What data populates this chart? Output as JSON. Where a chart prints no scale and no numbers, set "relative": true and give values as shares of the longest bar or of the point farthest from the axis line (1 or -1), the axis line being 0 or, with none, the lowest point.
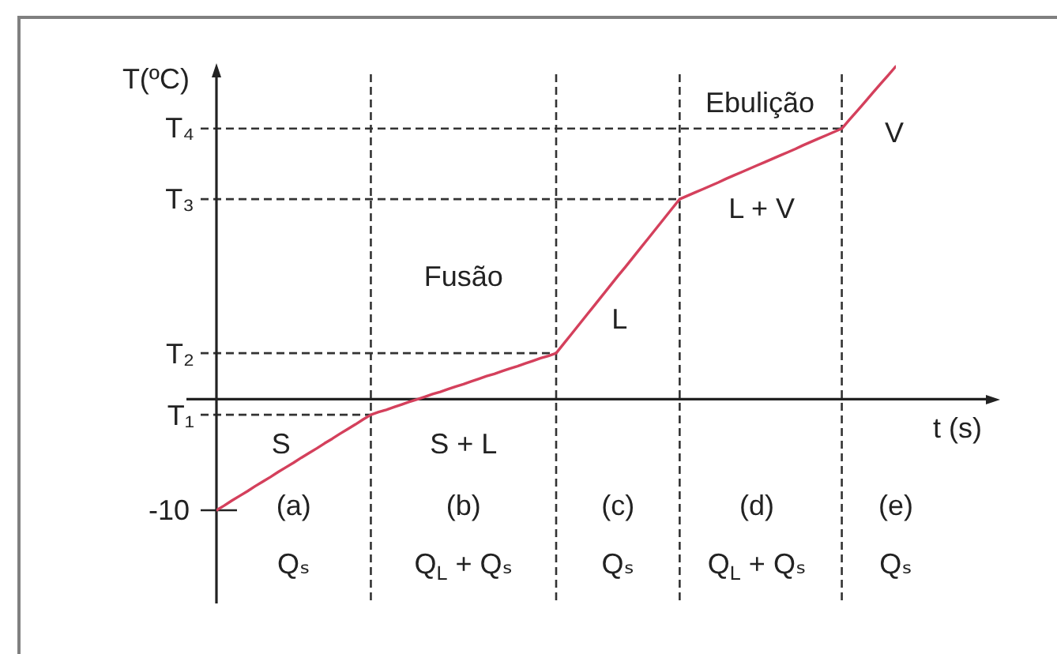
{
  "chart_data": {
    "type": "line",
    "relative": true,
    "tick_labels": "x",
    "xlabel": "t (s)",
    "ylabel": "T(ºC)",
    "categories": [
      null,
      null,
      null,
      null,
      null,
      null,
      null,
      null,
      null,
      null,
      "(a)",
      null,
      null,
      null,
      null,
      null,
      null,
      null,
      null,
      null,
      null,
      null,
      null,
      null,
      null,
      null,
      null,
      null,
      null,
      null,
      null,
      null,
      "(b)",
      null,
      null,
      null,
      null,
      null,
      null,
      null,
      null,
      null,
      null,
      null,
      null,
      null,
      null,
      null,
      null,
      null,
      null,
      null,
      "(c)",
      null,
      null,
      null,
      null,
      null,
      null,
      null,
      null,
      null,
      null,
      null,
      null,
      null,
      null,
      null,
      null,
      null,
      "(d)",
      null,
      null,
      null,
      null,
      null,
      null,
      null,
      null,
      null,
      null,
      null,
      null,
      null,
      null,
      null,
      null,
      null,
      "(e)"
    ],
    "series": [
      {
        "color": "#d4405c",
        "values": [
          -0.334,
          -0.32,
          -0.305,
          -0.291,
          -0.277,
          -0.262,
          -0.248,
          -0.234,
          -0.219,
          -0.205,
          -0.191,
          -0.176,
          -0.162,
          -0.148,
          -0.133,
          -0.119,
          -0.104,
          -0.09,
          -0.076,
          -0.061,
          -0.047,
          -0.039,
          -0.032,
          -0.024,
          -0.016,
          -0.008,
          -0.001,
          0.007,
          0.015,
          0.022,
          0.03,
          0.038,
          0.045,
          0.053,
          0.061,
          0.069,
          0.076,
          0.084,
          0.092,
          0.099,
          0.107,
          0.115,
          0.123,
          0.13,
          0.138,
          0.167,
          0.196,
          0.225,
          0.254,
          0.283,
          0.312,
          0.341,
          0.37,
          0.398,
          0.427,
          0.456,
          0.485,
          0.514,
          0.543,
          0.572,
          0.601,
          0.611,
          0.621,
          0.631,
          0.641,
          0.651,
          0.662,
          0.672,
          0.682,
          0.692,
          0.702,
          0.712,
          0.722,
          0.732,
          0.742,
          0.752,
          0.763,
          0.773,
          0.783,
          0.793,
          0.803,
          0.813,
          0.84,
          0.866,
          0.893,
          0.92,
          0.947,
          0.973,
          1
        ]
      }
    ],
    "ref_lines": [
      {
        "axis": "y",
        "value": 0.813,
        "label": "T₄",
        "color": "#333333",
        "line_style": "dashed"
      },
      {
        "axis": "y",
        "value": 0.601,
        "label": "T₃",
        "color": "#333333",
        "line_style": "dashed"
      },
      {
        "axis": "y",
        "value": 0.138,
        "label": "T₂",
        "color": "#333333",
        "line_style": "dashed"
      },
      {
        "axis": "y",
        "value": -0.047,
        "label": "T₁",
        "color": "#333333",
        "line_style": "dashed"
      }
    ],
    "annotations": [
      "-10",
      "Fusão",
      "L",
      "Ebulição",
      "L + V",
      "V",
      "S",
      "S + L",
      "Qₛ",
      "Q$_{L}$ + Qₛ",
      "Qₛ",
      "Q$_{L}$ + Qₛ",
      "Qₛ"
    ]
  }
}
